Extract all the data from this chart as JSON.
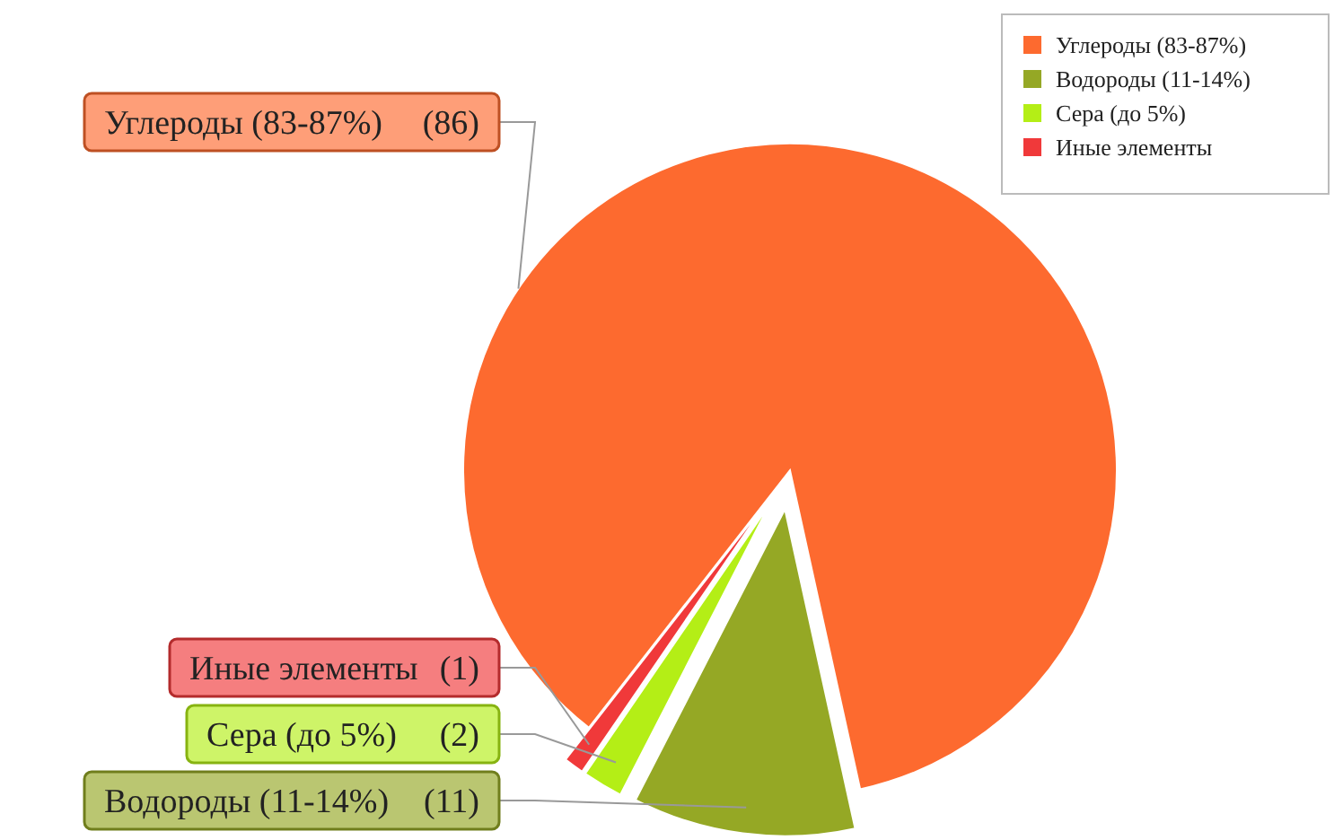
{
  "chart_data": {
    "type": "pie",
    "categories": [
      "Углероды (83-87%)",
      "Водороды (11-14%)",
      "Сера (до 5%)",
      "Иные элементы"
    ],
    "values": [
      86,
      11,
      2,
      1
    ],
    "colors": [
      "#fd6a2f",
      "#95a825",
      "#b4ee16",
      "#f0393a"
    ],
    "value_labels": [
      "(86)",
      "(11)",
      "(2)",
      "(1)"
    ],
    "legend": "top right"
  }
}
